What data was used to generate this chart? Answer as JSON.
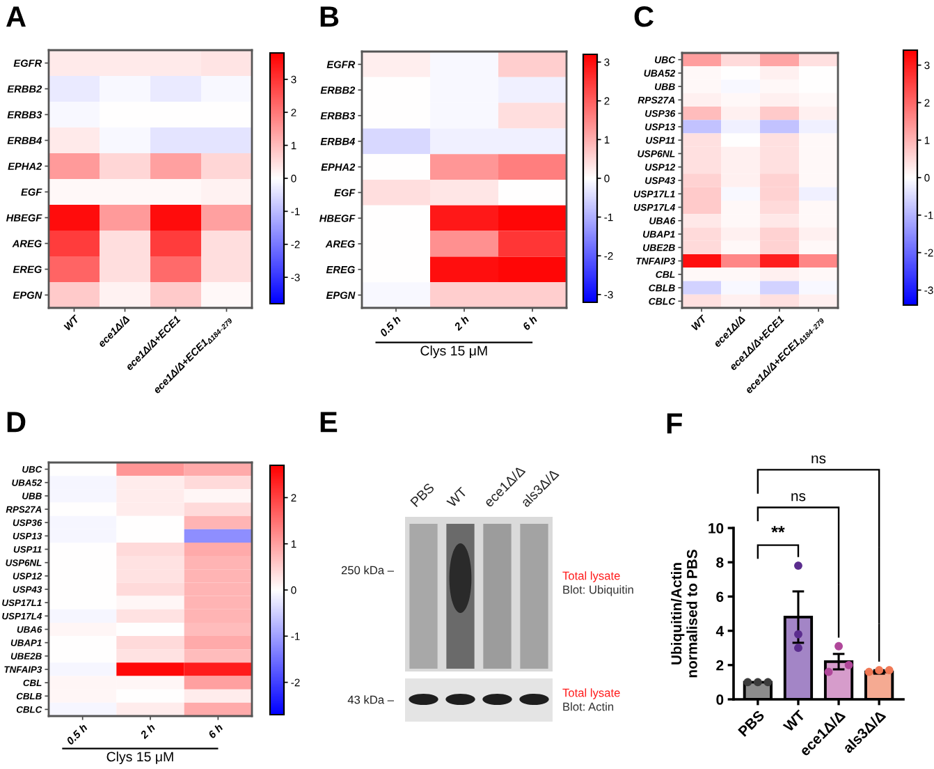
{
  "chart_data": [
    {
      "type": "heatmap",
      "title": "A",
      "categories": [
        "WT",
        "ece1Δ/Δ",
        "ece1Δ/Δ+ECE1",
        "ece1Δ/Δ+ECE1$_{Δ184–279}$"
      ],
      "y_categories": [
        "EGFR",
        "ERBB2",
        "ERBB3",
        "ERBB4",
        "EPHA2",
        "EGF",
        "HBEGF",
        "AREG",
        "EREG",
        "EPGN"
      ],
      "cells": [
        [
          0.3,
          0.3,
          0.3,
          0.4
        ],
        [
          -0.3,
          -0.1,
          -0.3,
          -0.1
        ],
        [
          -0.1,
          0,
          0,
          0
        ],
        [
          0.3,
          -0.1,
          -0.4,
          -0.4
        ],
        [
          1.5,
          0.6,
          1.4,
          0.6
        ],
        [
          0.1,
          0.1,
          0.1,
          0.2
        ],
        [
          3.6,
          1.5,
          3.6,
          1.4
        ],
        [
          2.9,
          0.5,
          2.9,
          0.5
        ],
        [
          2.3,
          0.5,
          2.2,
          0.5
        ],
        [
          0.8,
          0.2,
          0.8,
          0.1
        ]
      ],
      "clim": [
        -3.8,
        3.8
      ],
      "cticks": [
        -3,
        -2,
        -1,
        0,
        1,
        2,
        3
      ]
    },
    {
      "type": "heatmap",
      "title": "B",
      "categories": [
        "0.5 h",
        "2 h",
        "6 h"
      ],
      "xlabel": "Clys 15 μM",
      "y_categories": [
        "EGFR",
        "ERBB2",
        "ERBB3",
        "ERBB4",
        "EPHA2",
        "EGF",
        "HBEGF",
        "AREG",
        "EREG",
        "EPGN"
      ],
      "cells": [
        [
          0.2,
          -0.1,
          0.6
        ],
        [
          0,
          -0.1,
          -0.2
        ],
        [
          0,
          -0.1,
          0.4
        ],
        [
          -0.5,
          -0.2,
          -0.2
        ],
        [
          0,
          1.3,
          1.6
        ],
        [
          0.4,
          0.3,
          0
        ],
        [
          0,
          2.9,
          3.1
        ],
        [
          0,
          1.4,
          2.5
        ],
        [
          0,
          3.0,
          3.1
        ],
        [
          -0.1,
          0.6,
          0.6
        ]
      ],
      "clim": [
        -3.2,
        3.2
      ],
      "cticks": [
        -3,
        -2,
        -1,
        0,
        1,
        2,
        3
      ]
    },
    {
      "type": "heatmap",
      "title": "C",
      "categories": [
        "WT",
        "ece1Δ/Δ",
        "ece1Δ/Δ+ECE1",
        "ece1Δ/Δ+ECE1$_{Δ184–279}$"
      ],
      "y_categories": [
        "UBC",
        "UBA52",
        "UBB",
        "RPS27A",
        "USP36",
        "USP13",
        "USP11",
        "USP6NL",
        "USP12",
        "USP43",
        "USP17L1",
        "USP17L4",
        "UBA6",
        "UBAP1",
        "UBE2B",
        "TNFAIP3",
        "CBL",
        "CBLB",
        "CBLC"
      ],
      "cells": [
        [
          1.3,
          0.5,
          1.2,
          0.4
        ],
        [
          0.1,
          0,
          0.2,
          0
        ],
        [
          0.1,
          -0.1,
          0.1,
          0
        ],
        [
          0.2,
          0.1,
          0.2,
          0.1
        ],
        [
          0.9,
          0.2,
          0.7,
          0.2
        ],
        [
          -0.8,
          -0.2,
          -0.8,
          -0.2
        ],
        [
          0.4,
          0,
          0.4,
          0.1
        ],
        [
          0.4,
          0.2,
          0.4,
          0.1
        ],
        [
          0.4,
          0.2,
          0.4,
          0.1
        ],
        [
          0.6,
          0.2,
          0.6,
          0.1
        ],
        [
          0.7,
          -0.1,
          0.6,
          -0.2
        ],
        [
          0.7,
          0.1,
          0.5,
          0.1
        ],
        [
          0.3,
          0.1,
          0.3,
          0.1
        ],
        [
          0.5,
          0.2,
          0.6,
          0.2
        ],
        [
          0.5,
          0.1,
          0.6,
          0.1
        ],
        [
          3.2,
          1.6,
          3.0,
          1.6
        ],
        [
          0.1,
          0.1,
          0.2,
          0.1
        ],
        [
          -0.6,
          -0.1,
          -0.6,
          -0.1
        ],
        [
          0.4,
          0.2,
          0.4,
          0.2
        ]
      ],
      "clim": [
        -3.4,
        3.4
      ],
      "cticks": [
        -3,
        -2,
        -1,
        0,
        1,
        2,
        3
      ]
    },
    {
      "type": "heatmap",
      "title": "D",
      "categories": [
        "0.5 h",
        "2 h",
        "6 h"
      ],
      "xlabel": "Clys 15 μM",
      "y_categories": [
        "UBC",
        "UBA52",
        "UBB",
        "RPS27A",
        "USP36",
        "USP13",
        "USP11",
        "USP6NL",
        "USP12",
        "USP43",
        "USP17L1",
        "USP17L4",
        "UBA6",
        "UBAP1",
        "UBE2B",
        "TNFAIP3",
        "CBL",
        "CBLB",
        "CBLC"
      ],
      "cells": [
        [
          0,
          1.1,
          0.9
        ],
        [
          -0.1,
          0.2,
          0.4
        ],
        [
          -0.1,
          0.2,
          0.1
        ],
        [
          0,
          0.2,
          0.4
        ],
        [
          -0.1,
          0,
          0.8
        ],
        [
          -0.1,
          0,
          -1.2
        ],
        [
          0,
          0.4,
          0.9
        ],
        [
          0,
          0.3,
          0.8
        ],
        [
          0,
          0.3,
          0.8
        ],
        [
          0,
          0.4,
          0.8
        ],
        [
          0,
          0.1,
          0.8
        ],
        [
          -0.1,
          0.3,
          0.8
        ],
        [
          0.1,
          0,
          0.7
        ],
        [
          0,
          0.4,
          0.9
        ],
        [
          0,
          0.3,
          0.7
        ],
        [
          -0.1,
          2.6,
          2.4
        ],
        [
          0.1,
          0.1,
          1.0
        ],
        [
          0.1,
          0,
          0.2
        ],
        [
          -0.1,
          0.2,
          0.9
        ]
      ],
      "clim": [
        -2.7,
        2.7
      ],
      "cticks": [
        -2,
        -1,
        0,
        1,
        2
      ]
    },
    {
      "type": "other",
      "title": "E",
      "categories": [
        "PBS",
        "WT",
        "ece1Δ/Δ",
        "als3Δ/Δ"
      ],
      "annotations": [
        "250 kDa –",
        "Total lysate",
        "Blot: Ubiquitin",
        "43 kDa –",
        "Total lysate",
        "Blot: Actin"
      ]
    },
    {
      "type": "bar",
      "title": "F",
      "categories": [
        "PBS",
        "WT",
        "ece1Δ/Δ",
        "als3Δ/Δ"
      ],
      "ylabel": "Ubiquitin/Actin\nnormalised to PBS",
      "ylim": [
        0,
        10
      ],
      "yticks": [
        0,
        2,
        4,
        6,
        8,
        10
      ],
      "series": [
        {
          "type": "bar",
          "values": [
            1.0,
            4.8,
            2.2,
            1.6
          ],
          "colors": [
            "#8c8c8c",
            "#a385c6",
            "#d69ccb",
            "#f5aa92"
          ],
          "errors": [
            null,
            1.5,
            0.45,
            0.1
          ]
        },
        {
          "type": "scatter",
          "marker": "circle",
          "x": [
            "PBS",
            "PBS",
            "PBS",
            "WT",
            "WT",
            "WT",
            "ece1Δ/Δ",
            "ece1Δ/Δ",
            "ece1Δ/Δ",
            "als3Δ/Δ",
            "als3Δ/Δ",
            "als3Δ/Δ"
          ],
          "values": [
            1.0,
            1.0,
            1.0,
            7.8,
            3.8,
            3.0,
            1.6,
            3.1,
            2.0,
            1.6,
            1.7,
            1.7
          ],
          "colors": [
            "#3c3c3c",
            "#3c3c3c",
            "#3c3c3c",
            "#5b2d8e",
            "#5b2d8e",
            "#5b2d8e",
            "#b0479a",
            "#b0479a",
            "#b0479a",
            "#f07855",
            "#f07855",
            "#f07855"
          ]
        }
      ],
      "annotations": [
        "**",
        "ns",
        "ns"
      ]
    }
  ]
}
